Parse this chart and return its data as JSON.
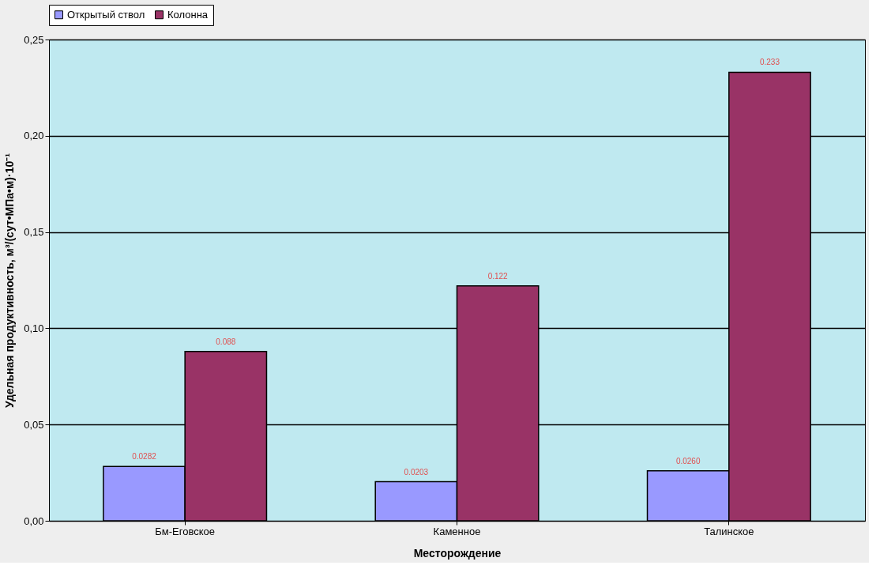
{
  "chart_data": {
    "type": "bar",
    "xlabel": "Месторождение",
    "ylabel": "Удельная продуктивность, м³/(сут•МПа•м)·10⁻¹",
    "categories": [
      "Бм-Еговское",
      "Каменное",
      "Талинское"
    ],
    "series": [
      {
        "name": "Открытый ствол",
        "color": "#9999ff",
        "values": [
          0.0282,
          0.0203,
          0.026
        ],
        "value_labels": [
          "0.0282",
          "0.0203",
          "0.0260"
        ]
      },
      {
        "name": "Колонна",
        "color": "#993366",
        "values": [
          0.088,
          0.122,
          0.233
        ],
        "value_labels": [
          "0.088",
          "0.122",
          "0.233"
        ]
      }
    ],
    "ylim": [
      0,
      0.25
    ],
    "yticks": [
      {
        "value": 0,
        "label": "0,00"
      },
      {
        "value": 0.05,
        "label": "0,05"
      },
      {
        "value": 0.1,
        "label": "0,10"
      },
      {
        "value": 0.15,
        "label": "0,15"
      },
      {
        "value": 0.2,
        "label": "0,20"
      },
      {
        "value": 0.25,
        "label": "0,25"
      }
    ],
    "grid": "y",
    "legend": "top"
  }
}
